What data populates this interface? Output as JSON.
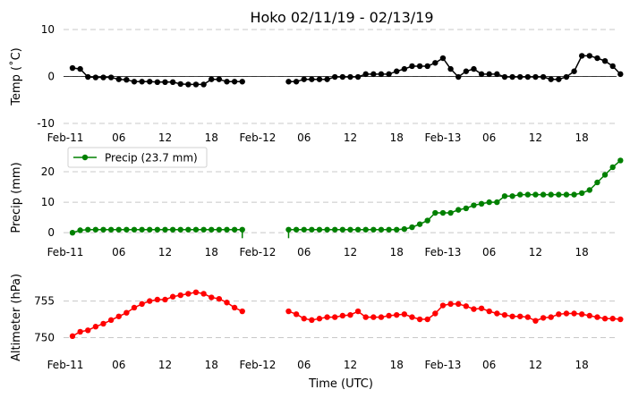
{
  "chart_data": {
    "type": "line",
    "title": "Hoko 02/11/19 - 02/13/19",
    "xlabel": "Time (UTC)",
    "x_tick_labels": [
      "Feb-11",
      "06",
      "12",
      "18",
      "Feb-12",
      "06",
      "12",
      "18",
      "Feb-13",
      "06",
      "12",
      "18"
    ],
    "x_tick_hours": [
      0,
      6,
      12,
      18,
      24,
      30,
      36,
      42,
      48,
      54,
      60,
      66
    ],
    "xlim": [
      0,
      70.5
    ],
    "panels": [
      {
        "id": "temp",
        "ylabel": "Temp (˚C)",
        "ylim": [
          -10,
          10
        ],
        "yticks": [
          -10,
          0,
          10
        ],
        "zero_line": true,
        "color": "#000000",
        "legend": null,
        "segments": [
          {
            "x": [
              0,
              1,
              2,
              3,
              4,
              5,
              6,
              7,
              8,
              9,
              10,
              11,
              12,
              13,
              14,
              15,
              16,
              17,
              18,
              19,
              20,
              21,
              22
            ],
            "y": [
              1.8,
              1.6,
              -0.1,
              -0.2,
              -0.2,
              -0.2,
              -0.6,
              -0.7,
              -1.1,
              -1.1,
              -1.1,
              -1.2,
              -1.2,
              -1.2,
              -1.6,
              -1.7,
              -1.7,
              -1.7,
              -0.6,
              -0.6,
              -1.1,
              -1.1,
              -1.1
            ]
          },
          {
            "x": [
              28,
              29,
              30,
              31,
              32,
              33,
              34,
              35,
              36,
              37,
              38,
              39,
              40,
              41,
              42,
              43,
              44,
              45,
              46,
              47,
              48,
              49,
              50,
              51,
              52,
              53,
              54,
              55,
              56,
              57,
              58,
              59,
              60,
              61,
              62,
              63,
              64,
              65,
              66,
              67,
              68,
              69,
              70,
              71
            ],
            "y": [
              -1.1,
              -1.1,
              -0.6,
              -0.6,
              -0.6,
              -0.6,
              -0.1,
              -0.1,
              -0.1,
              -0.1,
              0.5,
              0.5,
              0.5,
              0.5,
              1.1,
              1.6,
              2.2,
              2.2,
              2.2,
              2.9,
              3.9,
              1.6,
              -0.1,
              1.1,
              1.6,
              0.5,
              0.5,
              0.5,
              -0.1,
              -0.1,
              -0.1,
              -0.1,
              -0.1,
              -0.1,
              -0.6,
              -0.6,
              -0.1,
              1.1,
              4.4,
              4.4,
              3.9,
              3.3,
              2.2,
              0.5
            ]
          }
        ]
      },
      {
        "id": "precip",
        "ylabel": "Precip (mm)",
        "ylim": [
          -2,
          25
        ],
        "yticks": [
          0,
          10,
          20
        ],
        "zero_line": false,
        "color": "#008000",
        "legend": "Precip (23.7 mm)",
        "drop_ticks": [
          22,
          28
        ],
        "segments": [
          {
            "x": [
              0,
              1,
              2,
              3,
              4,
              5,
              6,
              7,
              8,
              9,
              10,
              11,
              12,
              13,
              14,
              15,
              16,
              17,
              18,
              19,
              20,
              21,
              22
            ],
            "y": [
              0,
              0.8,
              1.0,
              1.0,
              1.0,
              1.0,
              1.0,
              1.0,
              1.0,
              1.0,
              1.0,
              1.0,
              1.0,
              1.0,
              1.0,
              1.0,
              1.0,
              1.0,
              1.0,
              1.0,
              1.0,
              1.0,
              1.0
            ]
          },
          {
            "x": [
              28,
              29,
              30,
              31,
              32,
              33,
              34,
              35,
              36,
              37,
              38,
              39,
              40,
              41,
              42,
              43,
              44,
              45,
              46,
              47,
              48,
              49,
              50,
              51,
              52,
              53,
              54,
              55,
              56,
              57,
              58,
              59,
              60,
              61,
              62,
              63,
              64,
              65,
              66,
              67,
              68,
              69,
              70,
              71
            ],
            "y": [
              1.0,
              1.0,
              1.0,
              1.0,
              1.0,
              1.0,
              1.0,
              1.0,
              1.0,
              1.0,
              1.0,
              1.0,
              1.0,
              1.0,
              1.0,
              1.2,
              1.8,
              2.8,
              4.0,
              6.5,
              6.5,
              6.5,
              7.5,
              8.0,
              9.0,
              9.5,
              10.0,
              10.0,
              12.0,
              12.0,
              12.5,
              12.5,
              12.5,
              12.5,
              12.5,
              12.5,
              12.5,
              12.5,
              13.0,
              14.0,
              16.5,
              19.0,
              21.5,
              23.7
            ]
          }
        ]
      },
      {
        "id": "altimeter",
        "ylabel": "Altimeter (hPa)",
        "ylim": [
          747,
          758.5
        ],
        "yticks": [
          750,
          755
        ],
        "zero_line": false,
        "color": "#ff0000",
        "legend": null,
        "segments": [
          {
            "x": [
              0,
              1,
              2,
              3,
              4,
              5,
              6,
              7,
              8,
              9,
              10,
              11,
              12,
              13,
              14,
              15,
              16,
              17,
              18,
              19,
              20,
              21,
              22
            ],
            "y": [
              750.2,
              750.8,
              751.0,
              751.5,
              751.9,
              752.4,
              752.9,
              753.4,
              754.1,
              754.6,
              755.0,
              755.2,
              755.2,
              755.6,
              755.8,
              756.0,
              756.2,
              756.0,
              755.5,
              755.3,
              754.8,
              754.1,
              753.6
            ]
          },
          {
            "x": [
              28,
              29,
              30,
              31,
              32,
              33,
              34,
              35,
              36,
              37,
              38,
              39,
              40,
              41,
              42,
              43,
              44,
              45,
              46,
              47,
              48,
              49,
              50,
              51,
              52,
              53,
              54,
              55,
              56,
              57,
              58,
              59,
              60,
              61,
              62,
              63,
              64,
              65,
              66,
              67,
              68,
              69,
              70,
              71
            ],
            "y": [
              753.6,
              753.2,
              752.6,
              752.4,
              752.6,
              752.8,
              752.8,
              753.0,
              753.1,
              753.6,
              752.8,
              752.8,
              752.8,
              753.0,
              753.1,
              753.2,
              752.8,
              752.5,
              752.5,
              753.3,
              754.4,
              754.6,
              754.6,
              754.3,
              753.9,
              754.0,
              753.6,
              753.3,
              753.1,
              752.9,
              752.9,
              752.8,
              752.3,
              752.7,
              752.8,
              753.2,
              753.3,
              753.3,
              753.2,
              753.0,
              752.8,
              752.6,
              752.6,
              752.5
            ]
          }
        ]
      }
    ]
  }
}
